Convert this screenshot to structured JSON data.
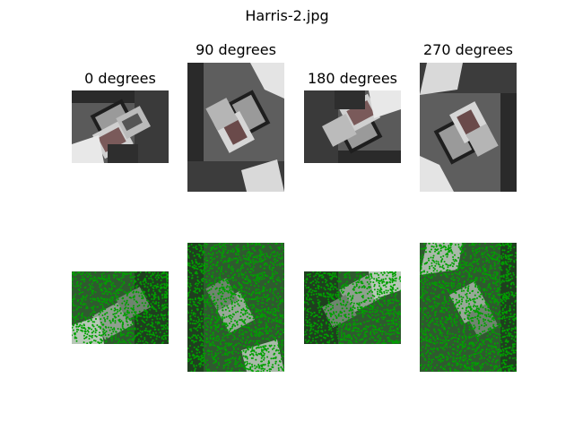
{
  "figure": {
    "title": "Harris-2.jpg",
    "columns": [
      {
        "label": "0 degrees"
      },
      {
        "label": "90 degrees"
      },
      {
        "label": "180 degrees"
      },
      {
        "label": "270 degrees"
      }
    ],
    "colors": {
      "background": "#ffffff",
      "keypoint": "#00a000",
      "photo_dark": "#1a1a1a",
      "photo_mid": "#7a7a7a",
      "photo_light": "#d8d8d8"
    }
  }
}
